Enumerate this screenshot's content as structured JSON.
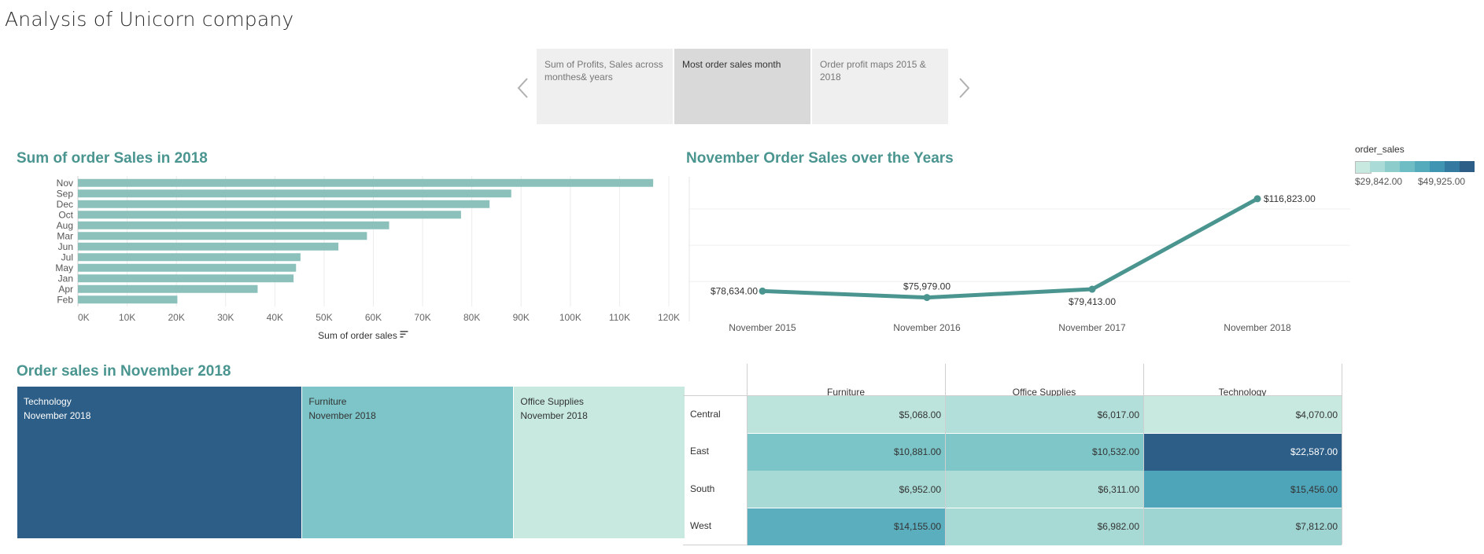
{
  "page_title": "Analysis of Unicorn company",
  "story": {
    "tabs": [
      {
        "label": "Sum of Profits, Sales across monthes& years",
        "active": false
      },
      {
        "label": "Most order sales month",
        "active": true
      },
      {
        "label": "Order profit maps 2015 & 2018",
        "active": false
      }
    ],
    "prev_icon": "chevron-left-icon",
    "next_icon": "chevron-right-icon"
  },
  "colors": {
    "title": "#4a9590",
    "bar": "#8cc1bb",
    "line": "#4a9590",
    "scale": [
      "#c7e9e0",
      "#aadbd6",
      "#8ccdcc",
      "#6fbdc4",
      "#55aabc",
      "#3f95b2",
      "#347aa0",
      "#2d5e87"
    ]
  },
  "chart_data": [
    {
      "type": "bar",
      "title": "Sum of order Sales in 2018",
      "orientation": "horizontal",
      "categories": [
        "Nov",
        "Sep",
        "Dec",
        "Oct",
        "Aug",
        "Mar",
        "Jun",
        "Jul",
        "May",
        "Jan",
        "Apr",
        "Feb"
      ],
      "values": [
        116823,
        88000,
        83600,
        77800,
        63200,
        58700,
        52900,
        45200,
        44300,
        43800,
        36500,
        20200
      ],
      "xlabel": "Sum of order sales",
      "xlim": [
        0,
        120000
      ],
      "xticks": [
        "0K",
        "10K",
        "20K",
        "30K",
        "40K",
        "50K",
        "60K",
        "70K",
        "80K",
        "90K",
        "100K",
        "110K",
        "120K"
      ],
      "sort_icon": "sort-descending-icon",
      "grid": true
    },
    {
      "type": "line",
      "title": "November Order Sales over the Years",
      "categories": [
        "November 2015",
        "November 2016",
        "November 2017",
        "November 2018"
      ],
      "values": [
        78634,
        75979,
        79413,
        116823
      ],
      "labels": [
        "$78,634.00",
        "$75,979.00",
        "$79,413.00",
        "$116,823.00"
      ],
      "grid": true
    },
    {
      "type": "heatmap",
      "title": "Order sales in November 2018",
      "subtype": "treemap",
      "items": [
        {
          "category": "Technology",
          "period": "November 2018",
          "value": 49925
        },
        {
          "category": "Furniture",
          "period": "November 2018",
          "value": 37056
        },
        {
          "category": "Office Supplies",
          "period": "November 2018",
          "value": 29842
        }
      ],
      "legend": {
        "title": "order_sales",
        "min_label": "$29,842.00",
        "max_label": "$49,925.00",
        "min": 29842,
        "max": 49925,
        "placement": "top-right"
      }
    },
    {
      "type": "table",
      "columns": [
        "Furniture",
        "Office Supplies",
        "Technology"
      ],
      "rows": [
        "Central",
        "East",
        "South",
        "West"
      ],
      "values": [
        [
          5068,
          6017,
          4070
        ],
        [
          10881,
          10532,
          22587
        ],
        [
          6952,
          6311,
          15456
        ],
        [
          14155,
          6982,
          7812
        ]
      ],
      "labels": [
        [
          "$5,068.00",
          "$6,017.00",
          "$4,070.00"
        ],
        [
          "$10,881.00",
          "$10,532.00",
          "$22,587.00"
        ],
        [
          "$6,952.00",
          "$6,311.00",
          "$15,456.00"
        ],
        [
          "$14,155.00",
          "$6,982.00",
          "$7,812.00"
        ]
      ]
    }
  ]
}
